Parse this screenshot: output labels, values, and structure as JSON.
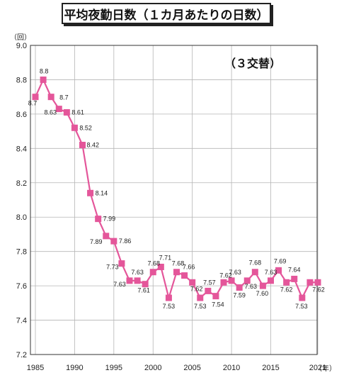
{
  "chart_data": {
    "type": "line",
    "title": "平均夜勤日数（１カ月あたりの日数）",
    "annotation": "（３交替）",
    "y_unit": "（回）",
    "x_unit": "（年）",
    "ylim": [
      7.2,
      9.0
    ],
    "yticks": [
      "7.2",
      "7.4",
      "7.6",
      "7.8",
      "8.0",
      "8.2",
      "8.4",
      "8.6",
      "8.8",
      "9.0"
    ],
    "xticks": [
      "1985",
      "1990",
      "1995",
      "2000",
      "2005",
      "2010",
      "2015",
      "2021"
    ],
    "xlim": [
      1985,
      2021
    ],
    "grid": true,
    "color": "#e4569a",
    "x": [
      1985,
      1986,
      1987,
      1988,
      1989,
      1990,
      1991,
      1992,
      1993,
      1994,
      1995,
      1996,
      1997,
      1998,
      1999,
      2000,
      2001,
      2002,
      2003,
      2004,
      2005,
      2006,
      2007,
      2008,
      2009,
      2010,
      2011,
      2012,
      2013,
      2014,
      2015,
      2016,
      2017,
      2018,
      2019,
      2020,
      2021
    ],
    "values": [
      8.7,
      8.8,
      8.7,
      8.63,
      8.61,
      8.52,
      8.42,
      8.14,
      7.99,
      7.89,
      7.86,
      7.73,
      7.63,
      7.63,
      7.61,
      7.68,
      7.71,
      7.53,
      7.68,
      7.66,
      7.62,
      7.53,
      7.57,
      7.54,
      7.62,
      7.63,
      7.59,
      7.63,
      7.68,
      7.6,
      7.63,
      7.69,
      7.62,
      7.64,
      7.53,
      7.62,
      7.62
    ],
    "labels": [
      "8.7",
      "8.8",
      "8.7",
      "8.63",
      "8.61",
      "8.52",
      "8.42",
      "8.14",
      "7.99",
      "7.89",
      "7.86",
      "7.73",
      "7.63",
      "7.63",
      "7.61",
      "7.68",
      "7.71",
      "7.53",
      "7.68",
      "7.66",
      "7.62",
      "7.53",
      "7.57",
      "7.54",
      "7.62",
      "7.63",
      "7.59",
      "7.63",
      "7.68",
      "7.60",
      "7.63",
      "7.69",
      "7.62",
      "7.64",
      "7.53",
      "",
      "7.62"
    ]
  }
}
